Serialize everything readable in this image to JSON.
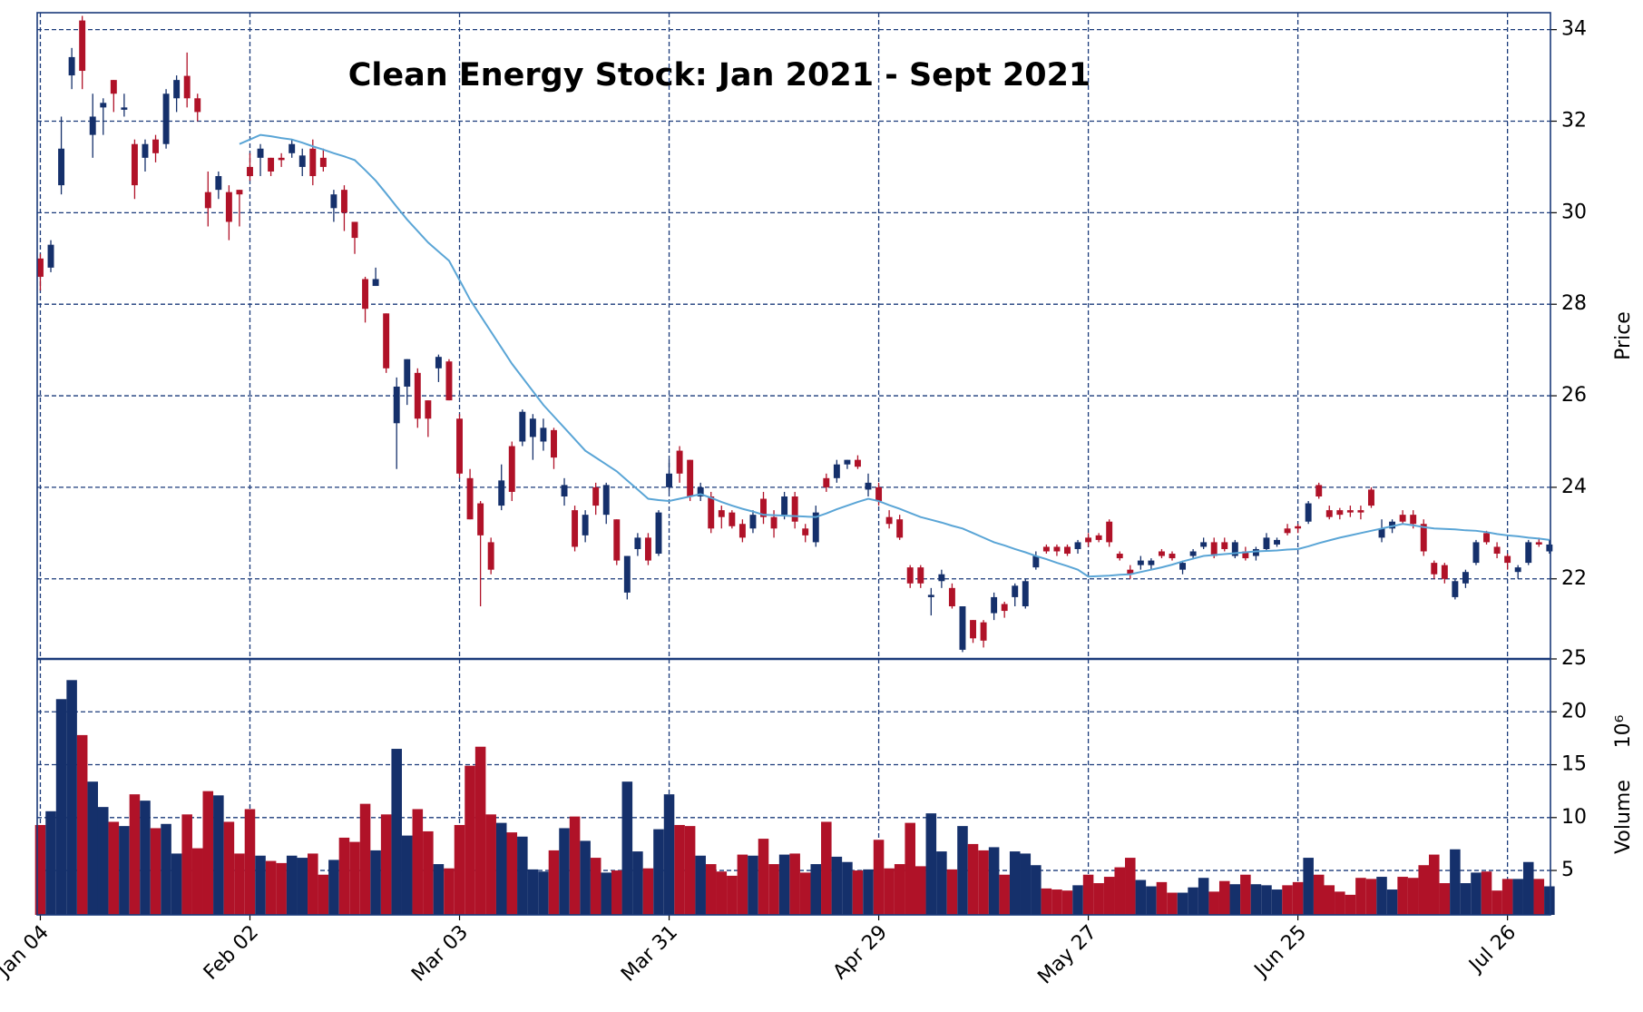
{
  "chart_data": {
    "type": "candlestick",
    "title": "Clean Energy Stock: Jan 2021 - Sept 2021",
    "ylabel": "Price",
    "volume_ylabel": "Volume",
    "volume_unit": "10⁶",
    "categories": [
      "Jan 04",
      null,
      null,
      null,
      null,
      null,
      null,
      null,
      null,
      null,
      null,
      null,
      null,
      null,
      null,
      null,
      null,
      null,
      null,
      null,
      "Feb 02",
      null,
      null,
      null,
      null,
      null,
      null,
      null,
      null,
      null,
      null,
      null,
      null,
      null,
      null,
      null,
      null,
      null,
      null,
      null,
      "Mar 03",
      null,
      null,
      null,
      null,
      null,
      null,
      null,
      null,
      null,
      null,
      null,
      null,
      null,
      null,
      null,
      null,
      null,
      null,
      null,
      "Mar 31",
      null,
      null,
      null,
      null,
      null,
      null,
      null,
      null,
      null,
      null,
      null,
      null,
      null,
      null,
      null,
      null,
      null,
      null,
      null,
      "Apr 29",
      null,
      null,
      null,
      null,
      null,
      null,
      null,
      null,
      null,
      null,
      null,
      null,
      null,
      null,
      null,
      null,
      null,
      null,
      null,
      "May 27",
      null,
      null,
      null,
      null,
      null,
      null,
      null,
      null,
      null,
      null,
      null,
      null,
      null,
      null,
      null,
      null,
      null,
      null,
      null,
      "Jun 25",
      null,
      null,
      null,
      null,
      null,
      null,
      null,
      null,
      null,
      null,
      null,
      null,
      null,
      null,
      null,
      null,
      null,
      null,
      null,
      "Jul 26",
      null,
      null,
      null,
      null
    ],
    "open": [
      29.0,
      28.8,
      30.6,
      33.0,
      34.2,
      31.7,
      32.3,
      32.9,
      32.25,
      31.5,
      31.2,
      31.6,
      31.5,
      32.5,
      32.99,
      32.5,
      30.45,
      30.5,
      30.45,
      30.5,
      31.0,
      31.2,
      31.2,
      31.2,
      31.3,
      31.0,
      31.4,
      31.2,
      30.1,
      30.5,
      29.8,
      28.55,
      28.4,
      27.8,
      25.4,
      26.2,
      26.5,
      25.9,
      26.6,
      26.75,
      25.5,
      24.2,
      23.65,
      22.8,
      23.6,
      24.9,
      25.0,
      25.1,
      25.0,
      25.25,
      23.8,
      23.5,
      22.95,
      24.0,
      23.4,
      23.3,
      21.7,
      22.65,
      22.9,
      22.55,
      24.0,
      24.8,
      24.6,
      23.8,
      23.8,
      23.5,
      23.45,
      23.2,
      23.1,
      23.75,
      23.35,
      23.4,
      23.8,
      23.1,
      22.8,
      24.2,
      24.2,
      24.5,
      24.6,
      23.95,
      24.0,
      23.35,
      23.3,
      22.25,
      22.25,
      21.6,
      21.95,
      21.8,
      20.45,
      21.1,
      21.05,
      21.25,
      21.45,
      21.6,
      21.4,
      22.25,
      22.7,
      22.7,
      22.7,
      22.65,
      22.9,
      22.95,
      23.25,
      22.55,
      22.2,
      22.3,
      22.3,
      22.6,
      22.55,
      22.2,
      22.5,
      22.7,
      22.8,
      22.8,
      22.5,
      22.6,
      22.5,
      22.65,
      22.75,
      23.1,
      23.15,
      23.25,
      24.05,
      23.5,
      23.5,
      23.5,
      23.5,
      23.95,
      22.9,
      23.1,
      23.4,
      23.4,
      23.2,
      22.35,
      22.3,
      21.6,
      21.9,
      22.35,
      23.0,
      22.7,
      22.5,
      22.15,
      22.35,
      22.8,
      22.6
    ],
    "high": [
      29.1,
      29.4,
      32.1,
      33.6,
      34.3,
      32.6,
      32.5,
      32.9,
      32.6,
      31.6,
      31.6,
      31.7,
      32.7,
      33.0,
      33.5,
      32.6,
      30.9,
      30.9,
      30.6,
      30.5,
      31.3,
      31.5,
      31.2,
      31.3,
      31.6,
      31.4,
      31.6,
      31.4,
      30.5,
      30.6,
      29.8,
      28.6,
      28.8,
      27.8,
      26.4,
      26.8,
      26.6,
      25.9,
      26.9,
      26.8,
      25.6,
      24.4,
      23.7,
      22.9,
      24.5,
      25.0,
      25.7,
      25.6,
      25.5,
      25.3,
      24.2,
      23.6,
      23.5,
      24.1,
      24.1,
      23.3,
      22.5,
      23.0,
      23.0,
      23.5,
      24.6,
      24.9,
      24.6,
      24.1,
      23.9,
      23.6,
      23.5,
      23.3,
      23.5,
      23.9,
      23.5,
      23.9,
      23.9,
      23.2,
      23.6,
      24.3,
      24.6,
      24.6,
      24.7,
      24.3,
      24.1,
      23.5,
      23.4,
      22.3,
      22.3,
      21.8,
      22.2,
      21.9,
      21.4,
      21.1,
      21.1,
      21.7,
      21.5,
      21.9,
      22.0,
      22.6,
      22.75,
      22.75,
      22.75,
      22.85,
      23.0,
      23.0,
      23.3,
      22.6,
      22.3,
      22.5,
      22.45,
      22.65,
      22.6,
      22.4,
      22.65,
      22.9,
      22.9,
      22.9,
      22.85,
      22.7,
      22.7,
      23.0,
      22.9,
      23.2,
      23.2,
      23.7,
      24.1,
      23.6,
      23.55,
      23.6,
      23.6,
      24.0,
      23.3,
      23.3,
      23.5,
      23.5,
      23.3,
      22.4,
      22.35,
      22.0,
      22.2,
      22.85,
      23.05,
      22.8,
      22.55,
      22.3,
      22.85,
      22.9,
      22.85
    ],
    "low": [
      28.3,
      28.7,
      30.4,
      32.7,
      32.7,
      31.2,
      31.7,
      32.2,
      32.1,
      30.3,
      30.9,
      31.1,
      31.4,
      32.2,
      32.3,
      32.0,
      29.7,
      30.3,
      29.4,
      29.7,
      30.7,
      30.8,
      30.8,
      31.0,
      31.2,
      30.8,
      30.6,
      30.9,
      29.8,
      29.6,
      29.1,
      27.6,
      28.4,
      26.5,
      24.4,
      25.8,
      25.3,
      25.1,
      26.3,
      25.9,
      24.2,
      23.3,
      21.4,
      22.1,
      23.5,
      23.7,
      24.9,
      24.6,
      24.8,
      24.4,
      23.6,
      22.6,
      22.8,
      23.4,
      23.2,
      22.3,
      21.55,
      22.5,
      22.3,
      22.5,
      23.9,
      24.1,
      23.7,
      23.7,
      23.0,
      23.1,
      23.1,
      22.8,
      23.0,
      23.2,
      22.9,
      23.3,
      23.1,
      22.8,
      22.7,
      23.9,
      24.1,
      24.4,
      24.4,
      23.8,
      23.6,
      23.1,
      22.85,
      21.8,
      21.8,
      21.2,
      21.8,
      21.35,
      20.4,
      20.6,
      20.5,
      21.1,
      21.15,
      21.4,
      21.35,
      22.2,
      22.55,
      22.5,
      22.5,
      22.55,
      22.7,
      22.8,
      22.7,
      22.4,
      22.0,
      22.2,
      22.2,
      22.45,
      22.4,
      22.1,
      22.45,
      22.65,
      22.45,
      22.6,
      22.45,
      22.4,
      22.4,
      22.6,
      22.7,
      22.95,
      23.0,
      23.2,
      23.75,
      23.3,
      23.3,
      23.35,
      23.3,
      23.55,
      22.8,
      23.0,
      23.2,
      23.1,
      22.5,
      22.0,
      21.9,
      21.55,
      21.8,
      22.3,
      22.75,
      22.45,
      22.2,
      22.0,
      22.3,
      22.7,
      22.55
    ],
    "close": [
      28.6,
      29.3,
      31.4,
      33.4,
      33.1,
      32.1,
      32.4,
      32.6,
      32.3,
      30.6,
      31.5,
      31.3,
      32.6,
      32.9,
      32.5,
      32.2,
      30.1,
      30.8,
      29.8,
      30.4,
      30.8,
      31.4,
      30.9,
      31.15,
      31.5,
      31.25,
      30.8,
      31.0,
      30.4,
      30.0,
      29.45,
      27.9,
      28.55,
      26.6,
      26.2,
      26.8,
      25.5,
      25.5,
      26.85,
      25.9,
      24.3,
      23.3,
      22.95,
      22.2,
      24.15,
      23.9,
      25.65,
      25.5,
      25.3,
      24.65,
      24.05,
      22.7,
      23.4,
      23.6,
      24.05,
      22.4,
      22.5,
      22.9,
      22.4,
      23.45,
      24.3,
      24.3,
      23.8,
      24.0,
      23.1,
      23.35,
      23.15,
      22.9,
      23.4,
      23.35,
      23.1,
      23.8,
      23.25,
      22.95,
      23.45,
      24.0,
      24.5,
      24.6,
      24.45,
      24.1,
      23.7,
      23.2,
      22.9,
      21.9,
      21.9,
      21.65,
      22.1,
      21.4,
      21.4,
      20.7,
      20.65,
      21.6,
      21.3,
      21.85,
      21.95,
      22.5,
      22.6,
      22.6,
      22.55,
      22.8,
      22.8,
      22.85,
      22.8,
      22.45,
      22.1,
      22.4,
      22.4,
      22.5,
      22.45,
      22.35,
      22.6,
      22.8,
      22.5,
      22.65,
      22.8,
      22.45,
      22.65,
      22.9,
      22.85,
      23.0,
      23.1,
      23.65,
      23.8,
      23.35,
      23.4,
      23.45,
      23.45,
      23.6,
      23.1,
      23.25,
      23.25,
      23.2,
      22.6,
      22.1,
      22.0,
      21.95,
      22.15,
      22.8,
      22.8,
      22.55,
      22.35,
      22.25,
      22.8,
      22.75,
      22.75
    ],
    "volume": [
      9.3,
      10.6,
      21.2,
      23.0,
      17.8,
      13.4,
      11.0,
      9.6,
      9.2,
      12.2,
      11.6,
      9.0,
      9.4,
      6.6,
      10.3,
      7.1,
      12.5,
      12.1,
      9.6,
      6.6,
      10.8,
      6.4,
      5.9,
      5.7,
      6.4,
      6.2,
      6.6,
      4.6,
      6.0,
      8.1,
      7.7,
      11.3,
      6.9,
      10.3,
      16.5,
      8.3,
      10.8,
      8.7,
      5.6,
      5.2,
      9.3,
      14.9,
      16.7,
      10.3,
      9.5,
      8.6,
      8.2,
      5.1,
      4.9,
      6.9,
      9.0,
      10.1,
      7.8,
      6.2,
      4.8,
      5.0,
      13.4,
      6.8,
      5.2,
      8.9,
      12.2,
      9.3,
      9.2,
      6.4,
      5.6,
      4.9,
      4.5,
      6.5,
      6.4,
      8.0,
      5.6,
      6.5,
      6.6,
      4.8,
      5.6,
      9.6,
      6.3,
      5.8,
      5.0,
      5.1,
      7.9,
      5.2,
      5.6,
      9.5,
      5.4,
      10.4,
      6.8,
      5.1,
      9.2,
      7.5,
      6.9,
      7.2,
      4.6,
      6.8,
      6.6,
      5.5,
      3.3,
      3.2,
      3.1,
      3.6,
      4.6,
      3.8,
      4.4,
      5.3,
      6.2,
      4.1,
      3.5,
      3.9,
      2.9,
      2.9,
      3.4,
      4.3,
      3.0,
      4.0,
      3.7,
      4.6,
      3.7,
      3.6,
      3.2,
      3.6,
      3.9,
      6.2,
      4.6,
      3.6,
      3.0,
      2.7,
      4.3,
      4.2,
      4.4,
      3.2,
      4.4,
      4.3,
      5.5,
      6.5,
      3.8,
      7.0,
      3.8,
      4.8,
      4.9,
      3.1,
      4.2,
      4.2,
      5.8,
      4.2,
      3.5
    ],
    "moving_average": [
      null,
      null,
      null,
      null,
      null,
      null,
      null,
      null,
      null,
      null,
      null,
      null,
      null,
      null,
      null,
      null,
      null,
      null,
      null,
      31.5,
      31.6,
      31.7,
      31.67,
      31.63,
      31.6,
      31.53,
      31.45,
      31.38,
      31.3,
      31.23,
      31.15,
      30.93,
      30.7,
      30.42,
      30.13,
      29.85,
      29.6,
      29.35,
      29.15,
      28.95,
      28.53,
      28.1,
      27.75,
      27.4,
      27.05,
      26.7,
      26.4,
      26.1,
      25.8,
      25.55,
      25.3,
      25.05,
      24.8,
      24.65,
      24.5,
      24.35,
      24.15,
      23.95,
      23.75,
      23.72,
      23.7,
      23.75,
      23.8,
      23.85,
      23.77,
      23.68,
      23.6,
      23.53,
      23.47,
      23.4,
      23.39,
      23.38,
      23.37,
      23.36,
      23.35,
      23.43,
      23.52,
      23.6,
      23.68,
      23.75,
      23.7,
      23.61,
      23.53,
      23.44,
      23.35,
      23.29,
      23.23,
      23.16,
      23.1,
      23.0,
      22.9,
      22.8,
      22.73,
      22.65,
      22.58,
      22.5,
      22.43,
      22.35,
      22.28,
      22.2,
      22.05,
      22.06,
      22.07,
      22.09,
      22.1,
      22.15,
      22.2,
      22.25,
      22.31,
      22.38,
      22.44,
      22.5,
      22.52,
      22.54,
      22.56,
      22.58,
      22.6,
      22.61,
      22.62,
      22.64,
      22.65,
      22.71,
      22.78,
      22.84,
      22.9,
      22.95,
      23.0,
      23.05,
      23.1,
      23.15,
      23.2,
      23.17,
      23.13,
      23.1,
      23.09,
      23.08,
      23.06,
      23.05,
      23.02,
      22.98,
      22.95,
      22.93,
      22.9,
      22.88,
      22.85
    ],
    "up_color": "#15306b",
    "down_color": "#b01228",
    "ma_color": "#5aa5d6",
    "grid_color": "#1a3a7a",
    "ylim": [
      20.25,
      34.37
    ],
    "yticks": [
      22,
      24,
      26,
      28,
      30,
      32,
      34
    ],
    "volume_ylim": [
      0.8,
      25
    ],
    "volume_yticks": [
      5,
      10,
      15,
      20,
      25
    ],
    "grid": true
  }
}
